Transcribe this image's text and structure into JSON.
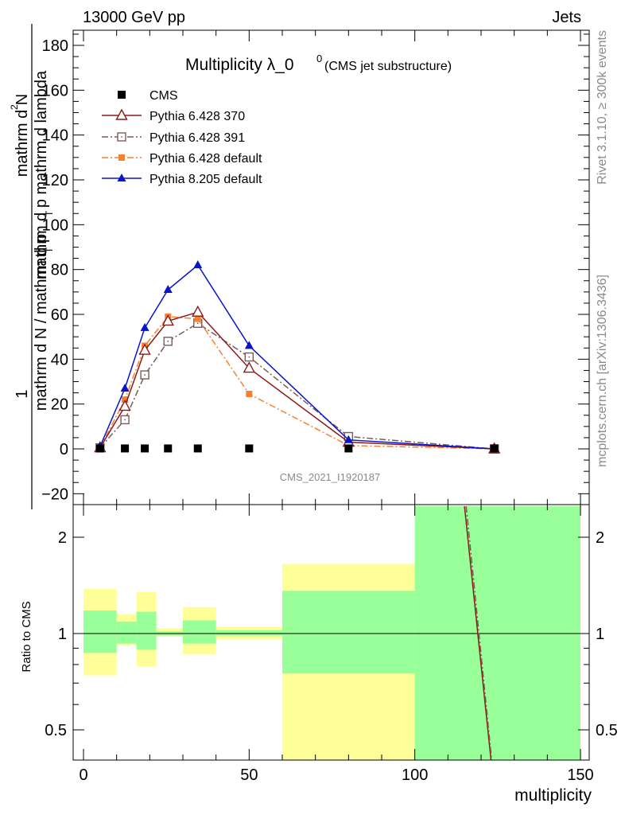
{
  "header": {
    "left_title": "13000 GeV pp",
    "right_title": "Jets"
  },
  "side_labels": {
    "rivet": "Rivet 3.1.10, ≥ 300k events",
    "mcplots": "mcplots.cern.ch [arXiv:1306.3436]"
  },
  "watermark": "CMS_2021_I1920187",
  "chart_data": [
    {
      "type": "line",
      "title": "Multiplicity λ_0",
      "title_sup": "0",
      "subtitle": "(CMS jet substructure)",
      "xlabel": "multiplicity",
      "ylabel": "1 / (mathrm d N / mathrm d p_T mathrm d p_T mathrm d lambda) mathrm d²N",
      "ylabel_numerator": "1",
      "ylabel_denominator": "mathrm d N / mathrm d p",
      "ylabel_denominator_sub": "T",
      "ylabel_tail": "mathrm d p",
      "ylabel_tail_sub": "T",
      "ylabel_tail2": "mathrm d lambda",
      "ylabel_top": "mathrm d",
      "ylabel_top_sup": "2",
      "ylabel_top2": "N",
      "xlim": [
        -5,
        150
      ],
      "ylim": [
        -20,
        187
      ],
      "yticks": [
        -20,
        0,
        20,
        40,
        60,
        80,
        100,
        120,
        140,
        160,
        180
      ],
      "legend_position": "top-left",
      "series": [
        {
          "name": "CMS",
          "color": "#000000",
          "marker": "square",
          "line": "none",
          "x": [
            5,
            12.5,
            18.5,
            25.5,
            34.5,
            50,
            80,
            124
          ],
          "y": [
            0.2,
            0.2,
            0.2,
            0.2,
            0.2,
            0.2,
            0.2,
            0.2
          ]
        },
        {
          "name": "Pythia 6.428 370",
          "color": "#8b1a1a",
          "marker": "open-triangle",
          "line": "solid",
          "x": [
            5,
            12.5,
            18.5,
            25.5,
            34.5,
            50,
            80,
            124
          ],
          "y": [
            0.5,
            19,
            44,
            57,
            61,
            36,
            3,
            0
          ]
        },
        {
          "name": "Pythia 6.428 391",
          "color": "#7a5a5a",
          "marker": "open-square",
          "line": "dash-dot",
          "x": [
            5,
            12.5,
            18.5,
            25.5,
            34.5,
            50,
            80,
            124
          ],
          "y": [
            0.5,
            13,
            33,
            48,
            56,
            41,
            5.5,
            0
          ]
        },
        {
          "name": "Pythia 6.428 default",
          "color": "#f58131",
          "marker": "filled-square",
          "line": "dash-dot",
          "x": [
            5,
            12.5,
            18.5,
            25.5,
            34.5,
            50,
            80,
            124
          ],
          "y": [
            0.5,
            22,
            46,
            59,
            58,
            24.5,
            1.5,
            0
          ]
        },
        {
          "name": "Pythia 8.205 default",
          "color": "#0a14c8",
          "marker": "filled-triangle",
          "line": "solid",
          "x": [
            5,
            12.5,
            18.5,
            25.5,
            34.5,
            50,
            80,
            124
          ],
          "y": [
            1,
            27,
            54,
            71,
            82,
            46,
            4,
            0
          ]
        }
      ]
    },
    {
      "type": "area",
      "ylabel": "Ratio to CMS",
      "xlabel": "multiplicity",
      "yscale": "log",
      "ylim": [
        0.42,
        2.35
      ],
      "xlim": [
        -5,
        150
      ],
      "yticks": [
        0.5,
        1,
        2
      ],
      "xticks": [
        0,
        50,
        100,
        150
      ],
      "bins": [
        {
          "x0": 0,
          "x1": 10,
          "yellow": [
            0.74,
            1.38
          ],
          "green": [
            0.87,
            1.18
          ]
        },
        {
          "x0": 10,
          "x1": 16,
          "yellow": [
            0.92,
            1.15
          ],
          "green": [
            0.93,
            1.09
          ]
        },
        {
          "x0": 16,
          "x1": 22,
          "yellow": [
            0.79,
            1.35
          ],
          "green": [
            0.89,
            1.17
          ]
        },
        {
          "x0": 22,
          "x1": 30,
          "yellow": [
            0.98,
            1.04
          ],
          "green": [
            0.985,
            1.015
          ]
        },
        {
          "x0": 30,
          "x1": 40,
          "yellow": [
            0.86,
            1.21
          ],
          "green": [
            0.93,
            1.1
          ]
        },
        {
          "x0": 40,
          "x1": 60,
          "yellow": [
            0.96,
            1.05
          ],
          "green": [
            0.985,
            1.025
          ]
        },
        {
          "x0": 60,
          "x1": 100,
          "yellow": [
            0.4,
            1.65
          ],
          "green": [
            0.75,
            1.36
          ]
        },
        {
          "x0": 100,
          "x1": 150,
          "yellow": [
            0.4,
            2.5
          ],
          "green": [
            0.4,
            2.5
          ]
        }
      ],
      "ratio_lines": [
        {
          "name": "Pythia 6.428 370",
          "color": "#8b1a1a",
          "from": [
            115,
            2.5
          ],
          "to": [
            123,
            0.4
          ]
        },
        {
          "name": "Pythia 6.428 391",
          "color": "#7a5a5a",
          "from": [
            115.5,
            2.5
          ],
          "to": [
            123.2,
            0.4
          ]
        }
      ]
    }
  ]
}
